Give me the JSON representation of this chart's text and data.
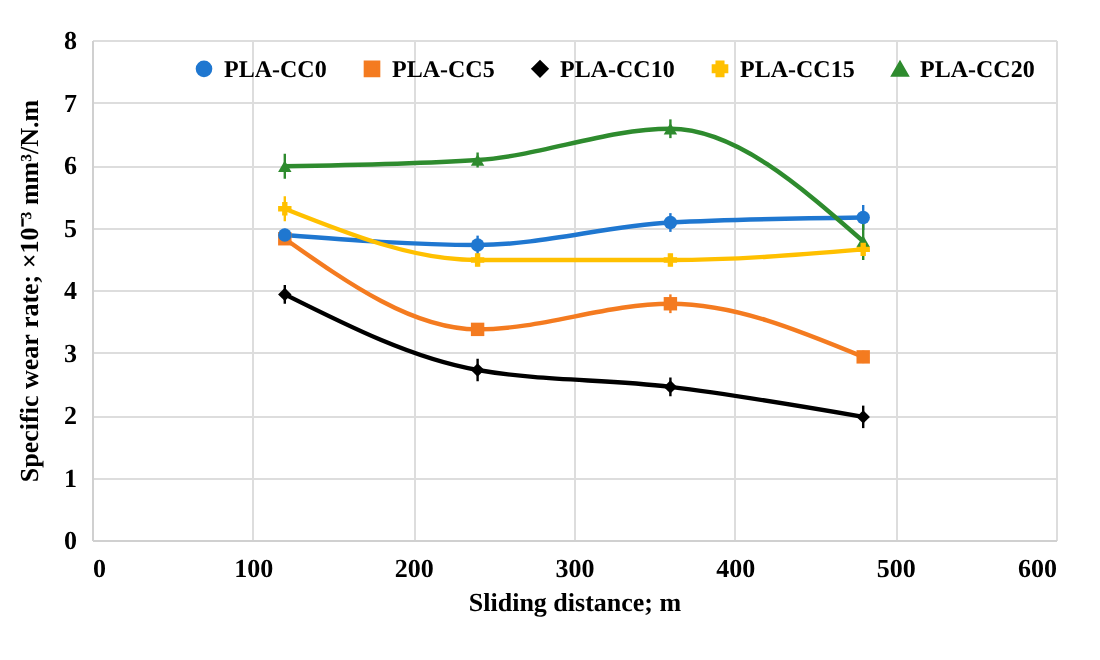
{
  "chart_data": {
    "type": "line",
    "xlabel": "Sliding distance; m",
    "ylabel": "Specific wear rate; ×10⁻³ mm³/N.m",
    "x": [
      120,
      240,
      360,
      480
    ],
    "series": [
      {
        "name": "PLA-CC0",
        "color": "#1f77d0",
        "marker": "circle",
        "values": [
          4.88,
          4.72,
          5.08,
          5.16
        ],
        "errors": [
          0.1,
          0.15,
          0.15,
          0.2
        ]
      },
      {
        "name": "PLA-CC5",
        "color": "#f47b20",
        "marker": "square",
        "values": [
          4.82,
          3.37,
          3.78,
          2.93
        ],
        "errors": [
          0.1,
          0.1,
          0.15,
          0.1
        ]
      },
      {
        "name": "PLA-CC10",
        "color": "#000000",
        "marker": "diamond",
        "values": [
          3.93,
          2.72,
          2.45,
          1.97
        ],
        "errors": [
          0.15,
          0.18,
          0.15,
          0.18
        ]
      },
      {
        "name": "PLA-CC15",
        "color": "#ffc000",
        "marker": "cross",
        "values": [
          5.3,
          4.48,
          4.48,
          4.65
        ],
        "errors": [
          0.2,
          0.1,
          0.1,
          0.1
        ]
      },
      {
        "name": "PLA-CC20",
        "color": "#2e8b2e",
        "marker": "triangle",
        "values": [
          5.98,
          6.08,
          6.58,
          4.78
        ],
        "errors": [
          0.2,
          0.12,
          0.15,
          0.3
        ]
      }
    ],
    "xlim": [
      0,
      600
    ],
    "xticks": [
      0,
      100,
      200,
      300,
      400,
      500,
      600
    ],
    "ylim": [
      0,
      8
    ],
    "yticks": [
      0,
      1,
      2,
      3,
      4,
      5,
      6,
      7,
      8
    ],
    "grid": true,
    "legend": "top",
    "line_style": "solid"
  }
}
